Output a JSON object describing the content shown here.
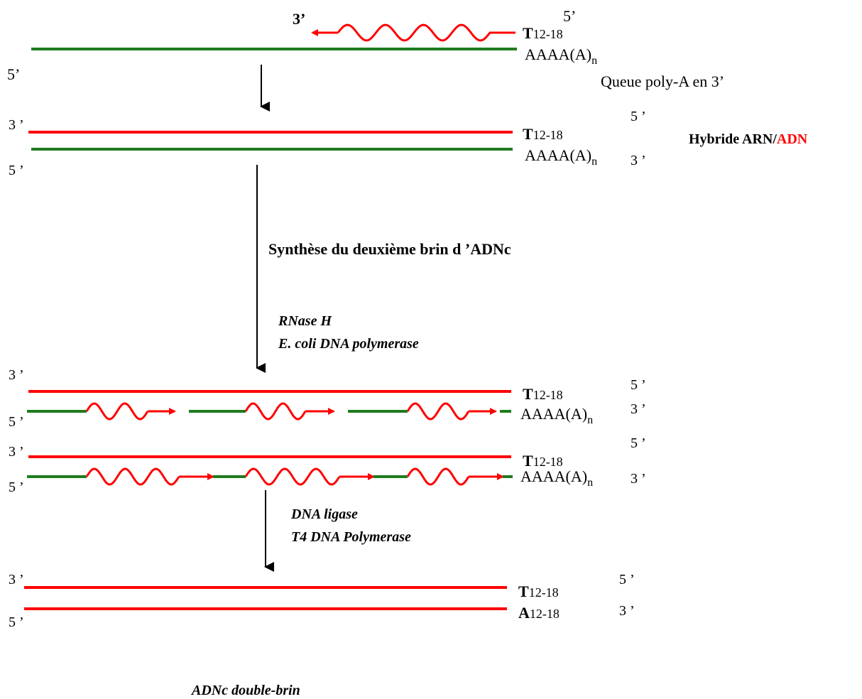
{
  "colors": {
    "rna": "#1e7b1e",
    "dna": "#ff0000",
    "arrow": "#000000",
    "text": "#000000"
  },
  "labels": {
    "top_3": "3’",
    "top_5": "5’",
    "t_base": "T",
    "t_sub": "12-18",
    "polyA_main": "AAAA(A)",
    "polyA_sub": "n",
    "a_base": "A",
    "a_sub": "12-18",
    "end_5": "5’",
    "end_3": "3’",
    "end_3_sp": "3 ’",
    "end_5_sp": "5 ’",
    "queue": "Queue poly-A en 3’",
    "hybride_prefix": "Hybride ARN/",
    "hybride_adn": "ADN",
    "synthese": "Synthèse du deuxième brin d ’ADNc",
    "rnase": "RNase H",
    "ecoli": "E. coli DNA polymerase",
    "ligase": "DNA ligase",
    "t4": "T4 DNA Polymerase",
    "final": "ADNc double-brin"
  }
}
